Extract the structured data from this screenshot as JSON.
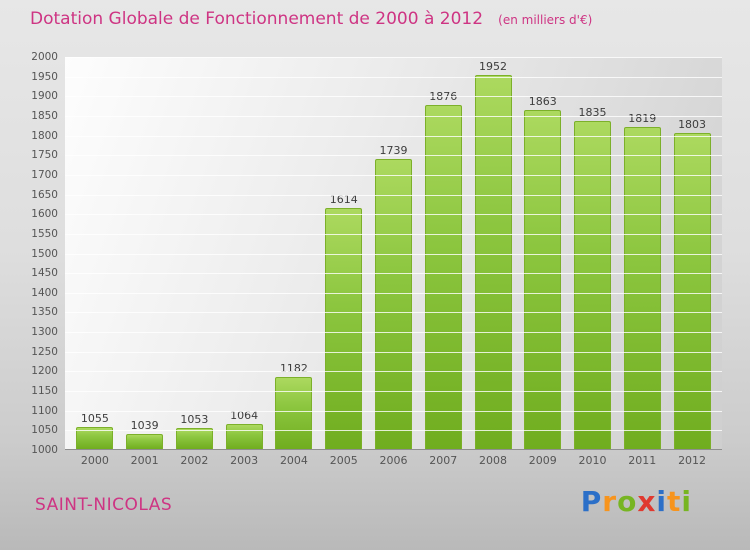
{
  "header": {
    "title": "Dotation Globale de Fonctionnement de 2000 à 2012",
    "subtitle": "(en milliers d'€)"
  },
  "footer": {
    "place": "SAINT-NICOLAS",
    "logo_letters": [
      {
        "char": "P",
        "color": "#2b6fc8"
      },
      {
        "char": "r",
        "color": "#f7941d"
      },
      {
        "char": "o",
        "color": "#77b522"
      },
      {
        "char": "x",
        "color": "#e0392f"
      },
      {
        "char": "i",
        "color": "#2b6fc8"
      },
      {
        "char": "t",
        "color": "#f7941d"
      },
      {
        "char": "i",
        "color": "#77b522"
      }
    ]
  },
  "colors": {
    "title_pink": "#ce3483",
    "bar_green_top": "#acd95f",
    "bar_green_bottom": "#70ad1f"
  },
  "chart_data": {
    "type": "bar",
    "title": "Dotation Globale de Fonctionnement de 2000 à 2012",
    "subtitle": "(en milliers d'€)",
    "categories": [
      "2000",
      "2001",
      "2002",
      "2003",
      "2004",
      "2005",
      "2006",
      "2007",
      "2008",
      "2009",
      "2010",
      "2011",
      "2012"
    ],
    "values": [
      1055,
      1039,
      1053,
      1064,
      1182,
      1614,
      1739,
      1876,
      1952,
      1863,
      1835,
      1819,
      1803
    ],
    "xlabel": "",
    "ylabel": "",
    "ylim": [
      1000,
      2000
    ],
    "ytick_step": 50,
    "grid": true,
    "legend": false
  }
}
